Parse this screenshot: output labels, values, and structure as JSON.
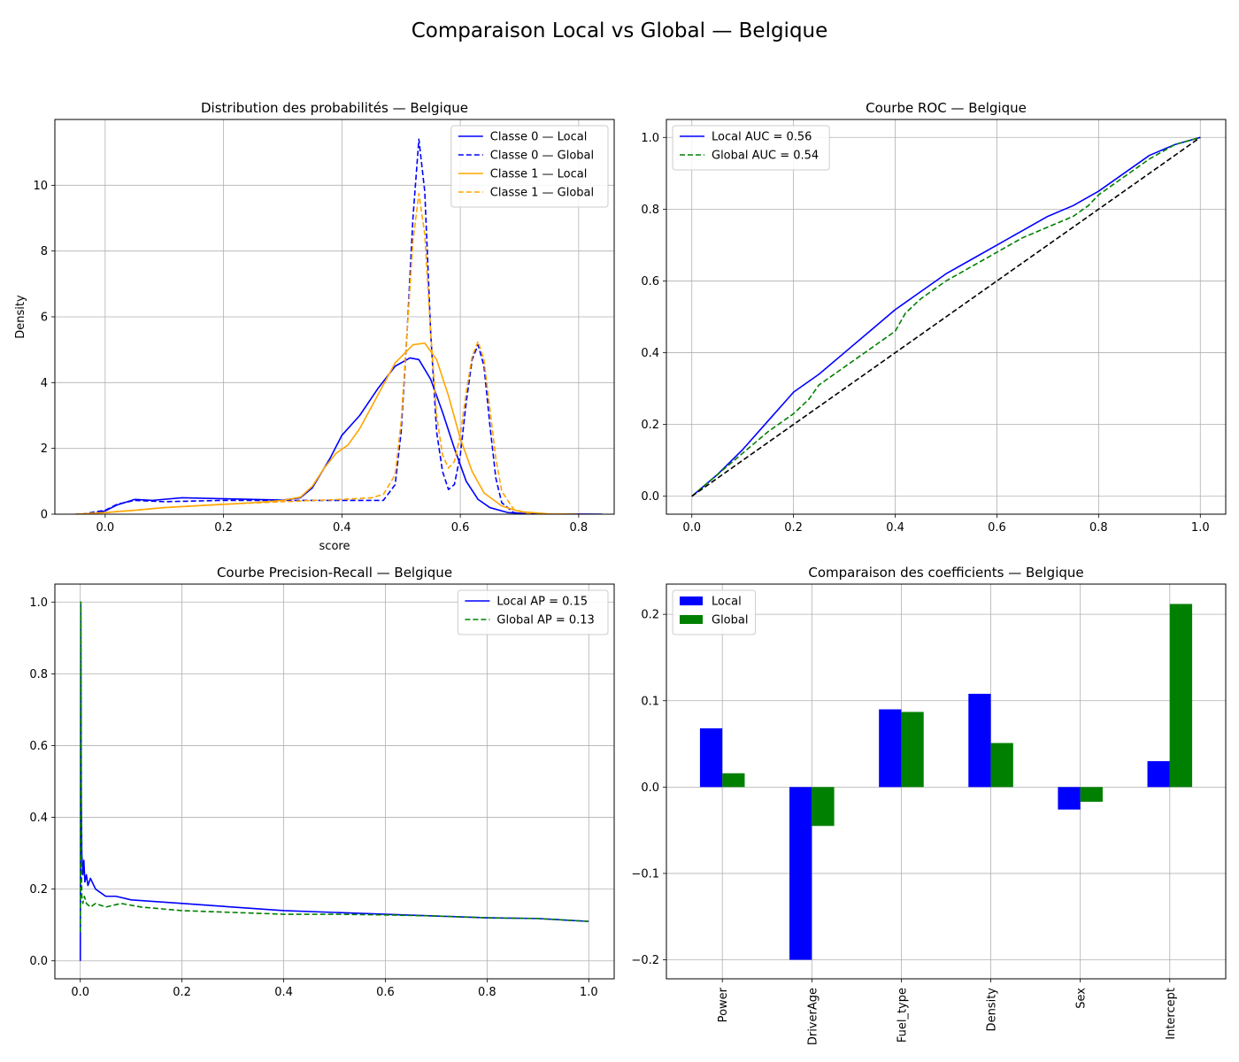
{
  "figure": {
    "title": "Comparaison Local vs Global — Belgique"
  },
  "chart_data": [
    {
      "type": "line",
      "title": "Distribution des probabilités — Belgique",
      "xlabel": "score",
      "ylabel": "Density",
      "xlim": [
        -0.085,
        0.86
      ],
      "ylim": [
        0,
        12
      ],
      "xticks": [
        0.0,
        0.2,
        0.4,
        0.6,
        0.8
      ],
      "xtick_labels": [
        "0.0",
        "0.2",
        "0.4",
        "0.6",
        "0.8"
      ],
      "yticks": [
        0,
        2,
        4,
        6,
        8,
        10
      ],
      "ytick_labels": [
        "0",
        "2",
        "4",
        "6",
        "8",
        "10"
      ],
      "grid": true,
      "legend": "top-right",
      "series": [
        {
          "name": "Classe 0 — Local",
          "color": "#0000ff",
          "dash": "solid",
          "points": [
            [
              -0.05,
              0
            ],
            [
              -0.02,
              0.02
            ],
            [
              0.0,
              0.1
            ],
            [
              0.02,
              0.28
            ],
            [
              0.05,
              0.45
            ],
            [
              0.08,
              0.42
            ],
            [
              0.13,
              0.5
            ],
            [
              0.2,
              0.47
            ],
            [
              0.3,
              0.43
            ],
            [
              0.33,
              0.5
            ],
            [
              0.35,
              0.8
            ],
            [
              0.38,
              1.7
            ],
            [
              0.4,
              2.4
            ],
            [
              0.43,
              3.0
            ],
            [
              0.46,
              3.8
            ],
            [
              0.49,
              4.5
            ],
            [
              0.515,
              4.75
            ],
            [
              0.53,
              4.7
            ],
            [
              0.55,
              4.1
            ],
            [
              0.57,
              3.1
            ],
            [
              0.59,
              2.0
            ],
            [
              0.61,
              1.0
            ],
            [
              0.63,
              0.45
            ],
            [
              0.65,
              0.2
            ],
            [
              0.68,
              0.05
            ],
            [
              0.72,
              0.01
            ],
            [
              0.84,
              0
            ]
          ]
        },
        {
          "name": "Classe 0 — Global",
          "color": "#0000ff",
          "dash": "dashed",
          "points": [
            [
              -0.04,
              0
            ],
            [
              0.0,
              0.12
            ],
            [
              0.02,
              0.3
            ],
            [
              0.05,
              0.42
            ],
            [
              0.1,
              0.38
            ],
            [
              0.2,
              0.42
            ],
            [
              0.3,
              0.42
            ],
            [
              0.4,
              0.42
            ],
            [
              0.47,
              0.42
            ],
            [
              0.49,
              0.9
            ],
            [
              0.5,
              2.5
            ],
            [
              0.51,
              5.5
            ],
            [
              0.52,
              9.0
            ],
            [
              0.53,
              11.4
            ],
            [
              0.54,
              9.8
            ],
            [
              0.55,
              5.5
            ],
            [
              0.56,
              2.5
            ],
            [
              0.57,
              1.3
            ],
            [
              0.58,
              0.75
            ],
            [
              0.59,
              0.9
            ],
            [
              0.6,
              1.8
            ],
            [
              0.61,
              3.4
            ],
            [
              0.62,
              4.7
            ],
            [
              0.63,
              5.15
            ],
            [
              0.64,
              4.5
            ],
            [
              0.65,
              2.7
            ],
            [
              0.66,
              1.1
            ],
            [
              0.67,
              0.35
            ],
            [
              0.69,
              0.05
            ],
            [
              0.71,
              0
            ]
          ]
        },
        {
          "name": "Classe 1 — Local",
          "color": "#ffa500",
          "dash": "solid",
          "points": [
            [
              -0.05,
              0
            ],
            [
              0.0,
              0.05
            ],
            [
              0.05,
              0.12
            ],
            [
              0.1,
              0.2
            ],
            [
              0.15,
              0.25
            ],
            [
              0.2,
              0.3
            ],
            [
              0.25,
              0.35
            ],
            [
              0.3,
              0.42
            ],
            [
              0.33,
              0.52
            ],
            [
              0.35,
              0.85
            ],
            [
              0.37,
              1.4
            ],
            [
              0.39,
              1.85
            ],
            [
              0.41,
              2.1
            ],
            [
              0.43,
              2.6
            ],
            [
              0.46,
              3.6
            ],
            [
              0.49,
              4.6
            ],
            [
              0.52,
              5.15
            ],
            [
              0.54,
              5.2
            ],
            [
              0.56,
              4.7
            ],
            [
              0.58,
              3.6
            ],
            [
              0.6,
              2.3
            ],
            [
              0.62,
              1.3
            ],
            [
              0.64,
              0.65
            ],
            [
              0.67,
              0.25
            ],
            [
              0.7,
              0.08
            ],
            [
              0.75,
              0.01
            ],
            [
              0.8,
              0
            ]
          ]
        },
        {
          "name": "Classe 1 — Global",
          "color": "#ffa500",
          "dash": "dashed",
          "points": [
            [
              -0.04,
              0
            ],
            [
              0.0,
              0.05
            ],
            [
              0.05,
              0.12
            ],
            [
              0.1,
              0.2
            ],
            [
              0.2,
              0.3
            ],
            [
              0.3,
              0.38
            ],
            [
              0.4,
              0.45
            ],
            [
              0.45,
              0.5
            ],
            [
              0.47,
              0.6
            ],
            [
              0.49,
              1.2
            ],
            [
              0.5,
              2.8
            ],
            [
              0.51,
              5.5
            ],
            [
              0.52,
              8.3
            ],
            [
              0.53,
              9.75
            ],
            [
              0.54,
              8.5
            ],
            [
              0.55,
              5.5
            ],
            [
              0.56,
              3.0
            ],
            [
              0.57,
              1.8
            ],
            [
              0.58,
              1.4
            ],
            [
              0.59,
              1.6
            ],
            [
              0.6,
              2.4
            ],
            [
              0.61,
              3.7
            ],
            [
              0.62,
              4.8
            ],
            [
              0.63,
              5.25
            ],
            [
              0.64,
              4.7
            ],
            [
              0.65,
              3.2
            ],
            [
              0.66,
              1.7
            ],
            [
              0.67,
              0.7
            ],
            [
              0.69,
              0.15
            ],
            [
              0.72,
              0
            ]
          ]
        }
      ]
    },
    {
      "type": "line",
      "title": "Courbe ROC — Belgique",
      "xlabel": "",
      "ylabel": "",
      "xlim": [
        -0.05,
        1.05
      ],
      "ylim": [
        -0.05,
        1.05
      ],
      "xticks": [
        0.0,
        0.2,
        0.4,
        0.6,
        0.8,
        1.0
      ],
      "xtick_labels": [
        "0.0",
        "0.2",
        "0.4",
        "0.6",
        "0.8",
        "1.0"
      ],
      "yticks": [
        0.0,
        0.2,
        0.4,
        0.6,
        0.8,
        1.0
      ],
      "ytick_labels": [
        "0.0",
        "0.2",
        "0.4",
        "0.6",
        "0.8",
        "1.0"
      ],
      "grid": true,
      "legend": "top-left",
      "series": [
        {
          "name": "Local AUC = 0.56",
          "color": "#0000ff",
          "dash": "solid",
          "points": [
            [
              0,
              0
            ],
            [
              0.05,
              0.06
            ],
            [
              0.1,
              0.13
            ],
            [
              0.15,
              0.21
            ],
            [
              0.2,
              0.29
            ],
            [
              0.25,
              0.34
            ],
            [
              0.3,
              0.4
            ],
            [
              0.35,
              0.46
            ],
            [
              0.4,
              0.52
            ],
            [
              0.45,
              0.57
            ],
            [
              0.5,
              0.62
            ],
            [
              0.55,
              0.66
            ],
            [
              0.6,
              0.7
            ],
            [
              0.65,
              0.74
            ],
            [
              0.7,
              0.78
            ],
            [
              0.75,
              0.81
            ],
            [
              0.8,
              0.85
            ],
            [
              0.85,
              0.9
            ],
            [
              0.9,
              0.95
            ],
            [
              0.95,
              0.98
            ],
            [
              1.0,
              1.0
            ]
          ]
        },
        {
          "name": "Global AUC = 0.54",
          "color": "#008000",
          "dash": "dashed",
          "points": [
            [
              0,
              0
            ],
            [
              0.05,
              0.06
            ],
            [
              0.1,
              0.12
            ],
            [
              0.15,
              0.18
            ],
            [
              0.2,
              0.23
            ],
            [
              0.23,
              0.27
            ],
            [
              0.25,
              0.31
            ],
            [
              0.3,
              0.36
            ],
            [
              0.35,
              0.41
            ],
            [
              0.38,
              0.44
            ],
            [
              0.4,
              0.46
            ],
            [
              0.42,
              0.51
            ],
            [
              0.45,
              0.55
            ],
            [
              0.5,
              0.6
            ],
            [
              0.55,
              0.64
            ],
            [
              0.6,
              0.68
            ],
            [
              0.65,
              0.72
            ],
            [
              0.7,
              0.75
            ],
            [
              0.75,
              0.78
            ],
            [
              0.78,
              0.81
            ],
            [
              0.8,
              0.84
            ],
            [
              0.85,
              0.89
            ],
            [
              0.9,
              0.94
            ],
            [
              0.95,
              0.98
            ],
            [
              1.0,
              1.0
            ]
          ]
        },
        {
          "name": "",
          "color": "#000000",
          "dash": "dashed",
          "points": [
            [
              0,
              0
            ],
            [
              1,
              1
            ]
          ]
        }
      ]
    },
    {
      "type": "line",
      "title": "Courbe Precision-Recall — Belgique",
      "xlabel": "",
      "ylabel": "",
      "xlim": [
        -0.05,
        1.05
      ],
      "ylim": [
        -0.05,
        1.05
      ],
      "xticks": [
        0.0,
        0.2,
        0.4,
        0.6,
        0.8,
        1.0
      ],
      "xtick_labels": [
        "0.0",
        "0.2",
        "0.4",
        "0.6",
        "0.8",
        "1.0"
      ],
      "yticks": [
        0.0,
        0.2,
        0.4,
        0.6,
        0.8,
        1.0
      ],
      "ytick_labels": [
        "0.0",
        "0.2",
        "0.4",
        "0.6",
        "0.8",
        "1.0"
      ],
      "grid": true,
      "legend": "top-right",
      "series": [
        {
          "name": "Local AP = 0.15",
          "color": "#0000ff",
          "dash": "solid",
          "points": [
            [
              0,
              0
            ],
            [
              0.001,
              1.0
            ],
            [
              0.002,
              0.45
            ],
            [
              0.003,
              0.3
            ],
            [
              0.005,
              0.24
            ],
            [
              0.007,
              0.28
            ],
            [
              0.009,
              0.22
            ],
            [
              0.012,
              0.24
            ],
            [
              0.015,
              0.21
            ],
            [
              0.02,
              0.23
            ],
            [
              0.03,
              0.2
            ],
            [
              0.04,
              0.19
            ],
            [
              0.05,
              0.18
            ],
            [
              0.07,
              0.18
            ],
            [
              0.1,
              0.17
            ],
            [
              0.15,
              0.165
            ],
            [
              0.2,
              0.16
            ],
            [
              0.3,
              0.15
            ],
            [
              0.4,
              0.14
            ],
            [
              0.5,
              0.135
            ],
            [
              0.6,
              0.13
            ],
            [
              0.7,
              0.125
            ],
            [
              0.8,
              0.12
            ],
            [
              0.9,
              0.118
            ],
            [
              1.0,
              0.11
            ]
          ]
        },
        {
          "name": "Global AP = 0.13",
          "color": "#008000",
          "dash": "dashed",
          "points": [
            [
              0,
              0.08
            ],
            [
              0.001,
              1.0
            ],
            [
              0.002,
              0.3
            ],
            [
              0.003,
              0.18
            ],
            [
              0.005,
              0.16
            ],
            [
              0.008,
              0.18
            ],
            [
              0.012,
              0.16
            ],
            [
              0.02,
              0.15
            ],
            [
              0.03,
              0.16
            ],
            [
              0.05,
              0.15
            ],
            [
              0.08,
              0.16
            ],
            [
              0.12,
              0.15
            ],
            [
              0.2,
              0.14
            ],
            [
              0.3,
              0.135
            ],
            [
              0.4,
              0.13
            ],
            [
              0.5,
              0.13
            ],
            [
              0.6,
              0.128
            ],
            [
              0.7,
              0.125
            ],
            [
              0.8,
              0.12
            ],
            [
              0.9,
              0.118
            ],
            [
              1.0,
              0.11
            ]
          ]
        }
      ]
    },
    {
      "type": "bar",
      "title": "Comparaison des coefficients — Belgique",
      "categories": [
        "Power",
        "DriverAge",
        "Fuel_type",
        "Density",
        "Sex",
        "Intercept"
      ],
      "ylim": [
        -0.222,
        0.235
      ],
      "yticks": [
        -0.2,
        -0.1,
        0.0,
        0.1,
        0.2
      ],
      "ytick_labels": [
        "−0.2",
        "−0.1",
        "0.0",
        "0.1",
        "0.2"
      ],
      "grid": true,
      "legend": "top-left",
      "series": [
        {
          "name": "Local",
          "color": "#0000ff",
          "values": [
            0.068,
            -0.2,
            0.09,
            0.108,
            -0.026,
            0.03
          ]
        },
        {
          "name": "Global",
          "color": "#008000",
          "values": [
            0.016,
            -0.045,
            0.087,
            0.051,
            -0.017,
            0.212
          ]
        }
      ]
    }
  ]
}
